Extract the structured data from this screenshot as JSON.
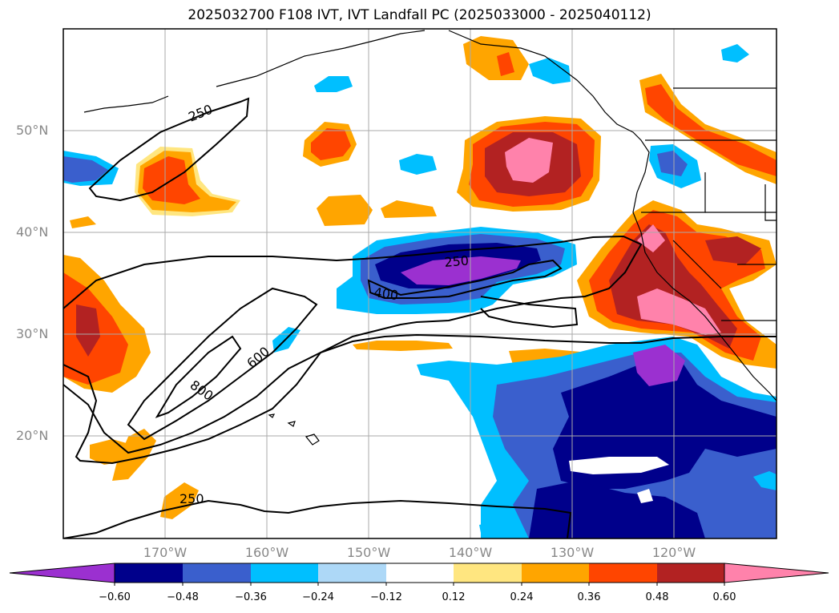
{
  "title": "2025032700 F108 IVT, IVT Landfall PC (2025033000 - 2025040112)",
  "lat_labels": [
    "50°N",
    "40°N",
    "30°N",
    "20°N"
  ],
  "lon_labels": [
    "170°W",
    "160°W",
    "150°W",
    "140°W",
    "130°W",
    "120°W"
  ],
  "contour_labels": [
    "250",
    "250",
    "400",
    "600",
    "800",
    "250"
  ],
  "colorbar": {
    "ticks": [
      "−0.60",
      "−0.48",
      "−0.36",
      "−0.24",
      "−0.12",
      "0.12",
      "0.24",
      "0.36",
      "0.48",
      "0.60"
    ],
    "colors": [
      "#9b30d0",
      "#00008b",
      "#3a5fcd",
      "#00bfff",
      "#add8f7",
      "#ffffff",
      "#ffe680",
      "#ffa500",
      "#ff4500",
      "#b22222",
      "#ff82ab"
    ]
  }
}
